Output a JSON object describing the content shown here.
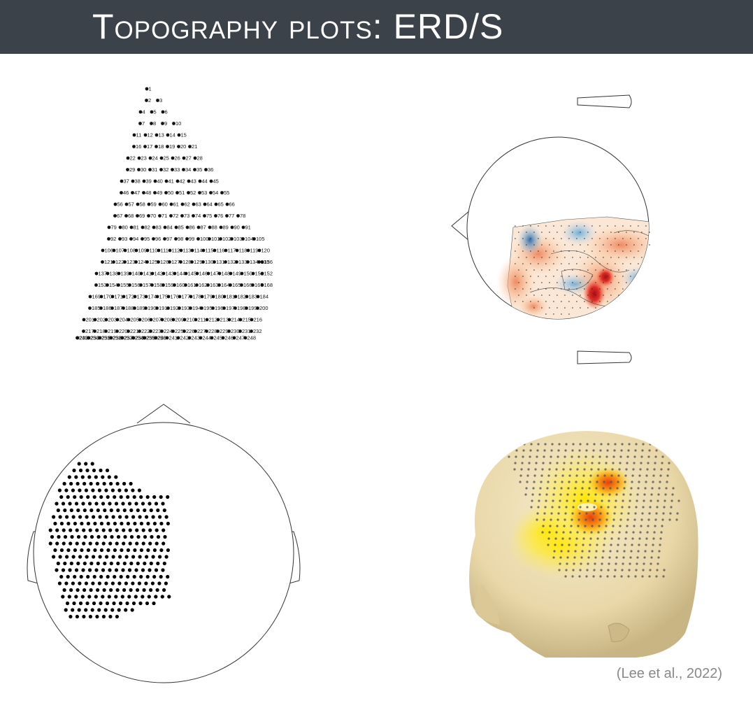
{
  "header": {
    "title": "Topography plots: ERD/S"
  },
  "sensor_layout_panel": {
    "electrode_count": 256
  },
  "citation": "(Lee et al., 2022)",
  "colors": {
    "header_bg": "#3c4249",
    "header_text": "#ffffff",
    "citation": "#888888",
    "desync_red": "#c0392b",
    "sync_blue": "#4f86c6",
    "scalp_skin": "#efe0b8"
  },
  "icons": {
    "head_outline": "head-outline-icon",
    "electrode": "electrode-dot-icon",
    "scalp_3d": "scalp-3d-icon"
  }
}
